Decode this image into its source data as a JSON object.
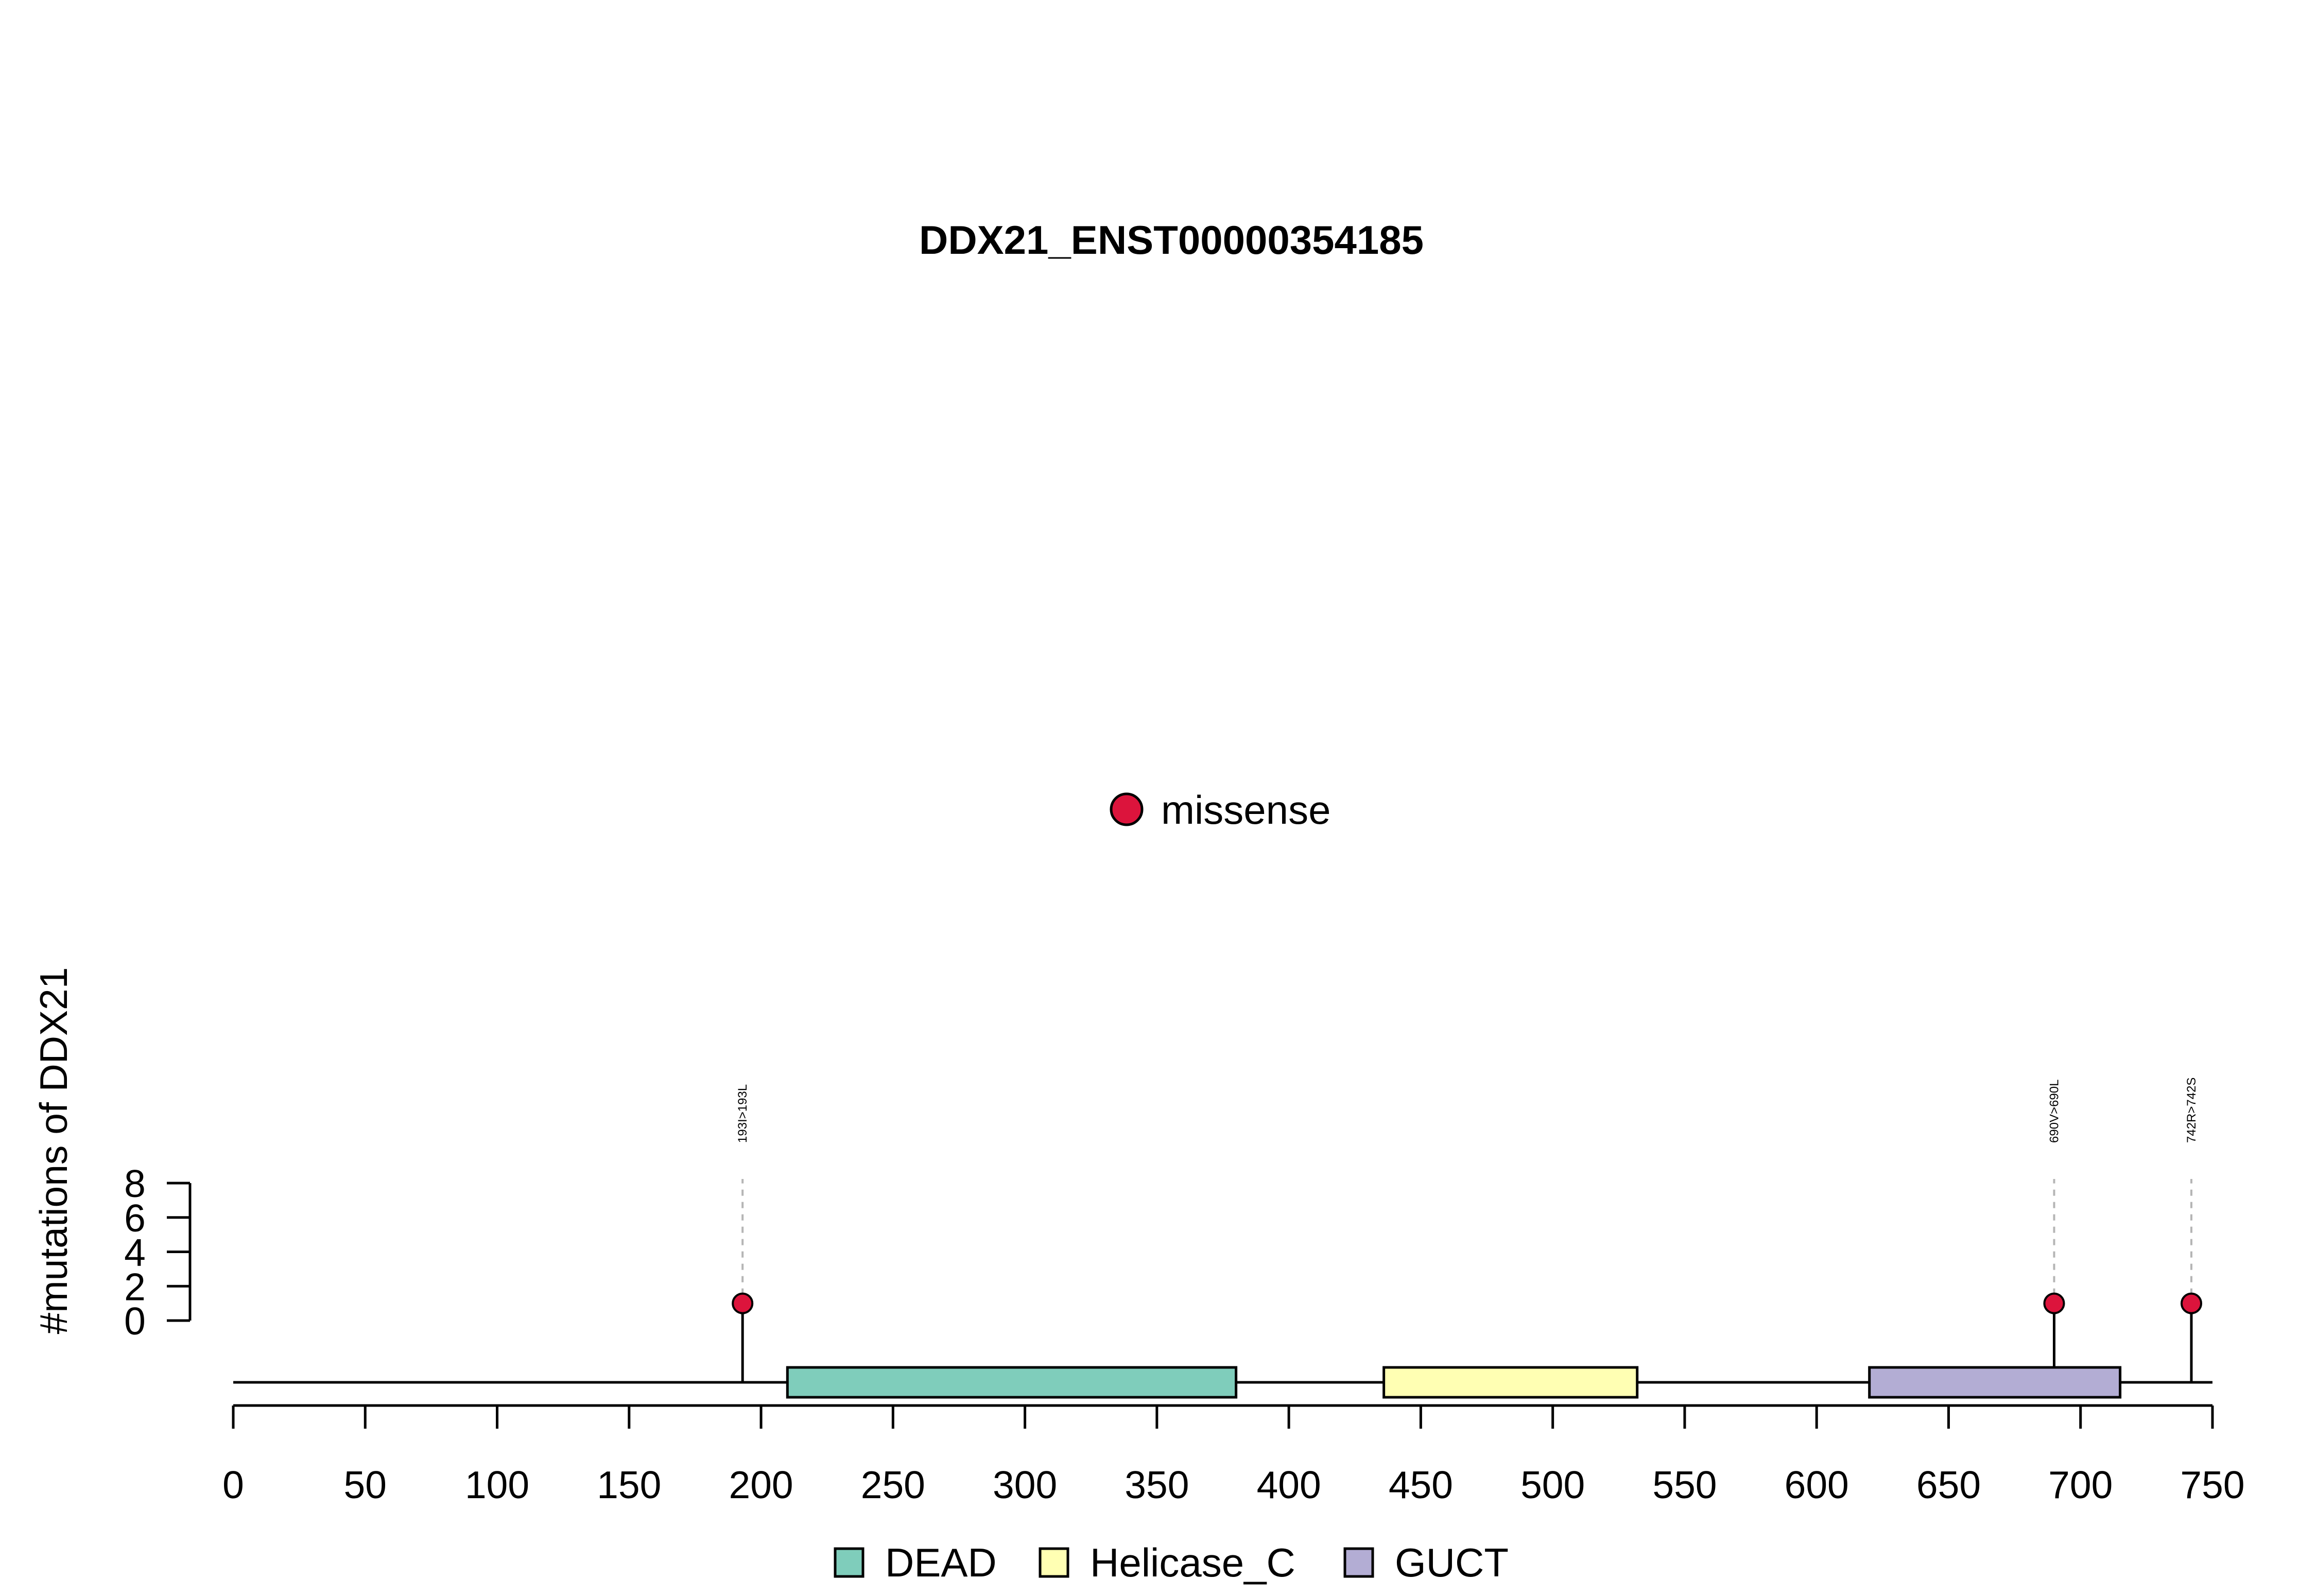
{
  "chart_data": {
    "type": "lollipop",
    "title": "DDX21_ENST00000354185",
    "ylabel": "#mutations of DDX21",
    "xlabel": "",
    "protein_length": 750,
    "xlim": [
      0,
      750
    ],
    "x_ticks": [
      0,
      50,
      100,
      150,
      200,
      250,
      300,
      350,
      400,
      450,
      500,
      550,
      600,
      650,
      700,
      750
    ],
    "y_ticks": [
      0,
      2,
      4,
      6,
      8
    ],
    "ylim": [
      0,
      8
    ],
    "mutation_legend": [
      {
        "label": "missense",
        "color": "#DC143C"
      }
    ],
    "mutations": [
      {
        "position": 193,
        "count": 1,
        "label": "193I>193L",
        "type": "missense"
      },
      {
        "position": 690,
        "count": 1,
        "label": "690V>690L",
        "type": "missense"
      },
      {
        "position": 742,
        "count": 1,
        "label": "742R>742S",
        "type": "missense"
      }
    ],
    "domains": [
      {
        "name": "DEAD",
        "start": 210,
        "end": 380,
        "color": "#7FCDBB"
      },
      {
        "name": "Helicase_C",
        "start": 436,
        "end": 532,
        "color": "#FFFFB3"
      },
      {
        "name": "GUCT",
        "start": 620,
        "end": 715,
        "color": "#B3ADD4"
      }
    ],
    "grid": false
  }
}
